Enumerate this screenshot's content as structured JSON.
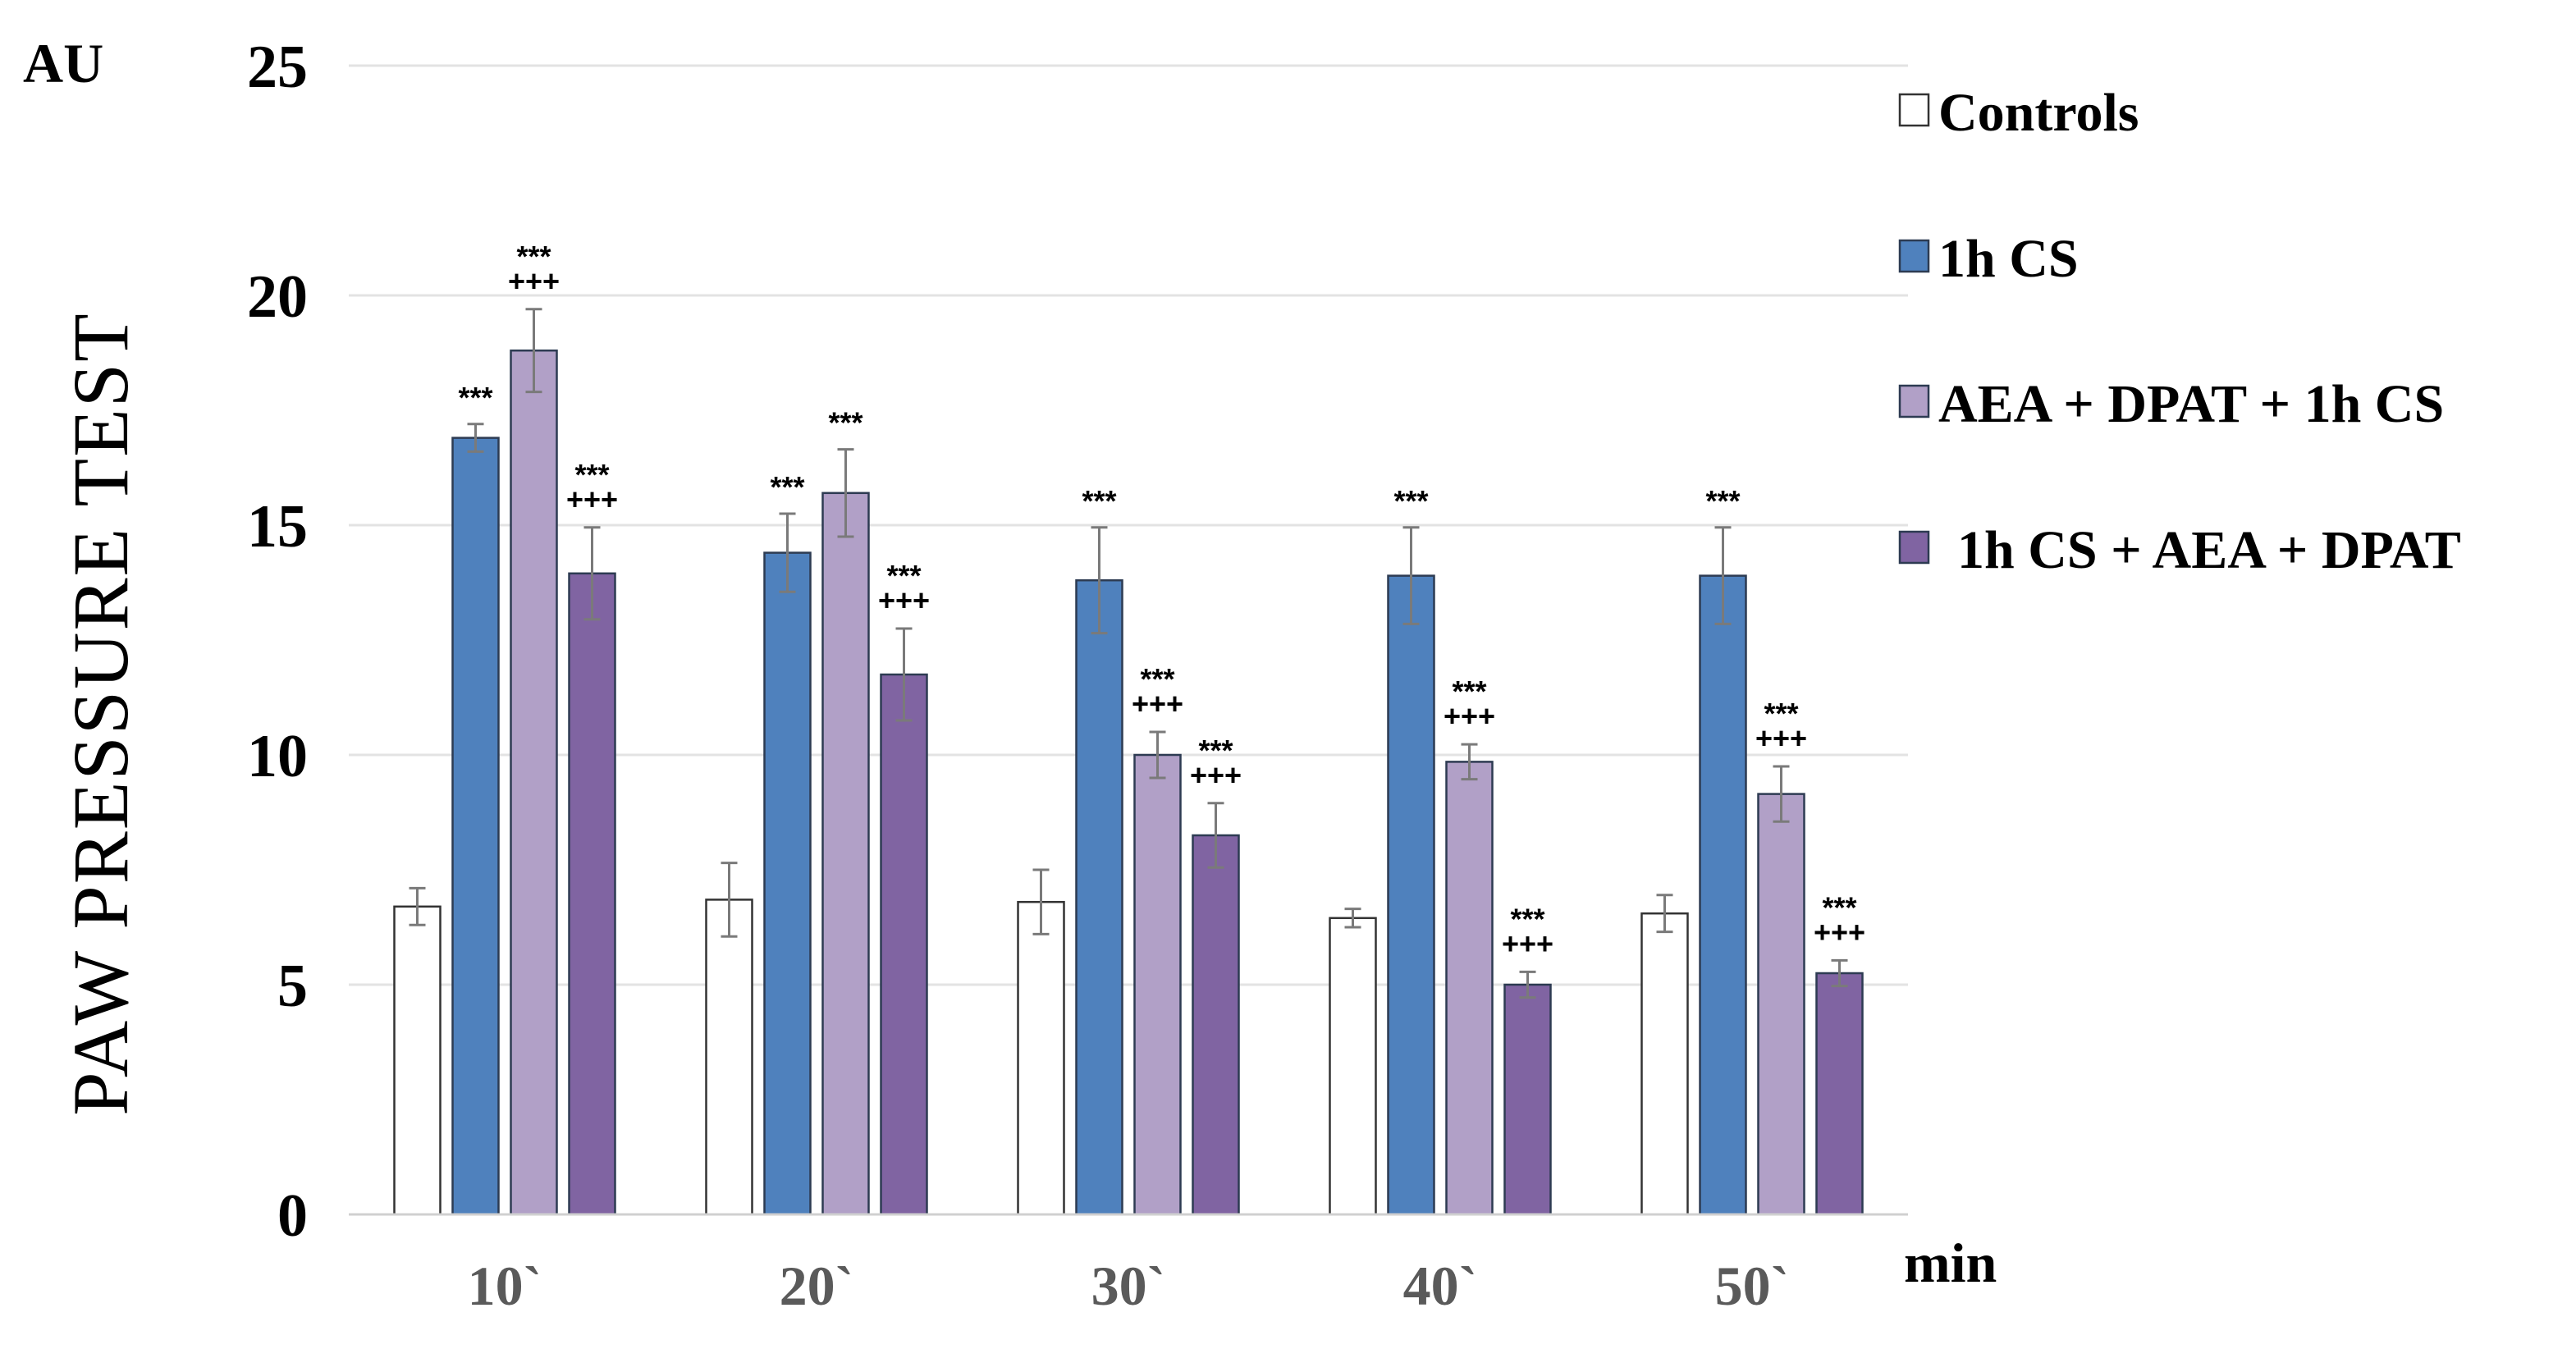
{
  "chart_data": {
    "type": "bar",
    "title": "",
    "ylabel": "PAW PRESSURE TEST",
    "yunit": "AU",
    "xlabel": "min",
    "ylim": [
      0,
      25
    ],
    "yticks": [
      0,
      5,
      10,
      15,
      20,
      25
    ],
    "ytick_labels": [
      "0",
      "5",
      "10",
      "15",
      "20",
      "25"
    ],
    "grid": true,
    "legend_position": "right",
    "categories": [
      "10`",
      "20`",
      "30`",
      "40`",
      "50`"
    ],
    "series": [
      {
        "name": "Controls",
        "color": "#ffffff",
        "values": [
          6.7,
          6.85,
          6.8,
          6.45,
          6.55
        ],
        "errors": [
          0.4,
          0.8,
          0.7,
          0.2,
          0.4
        ],
        "sig_top": [
          "",
          "",
          "",
          "",
          ""
        ],
        "sig_bottom": [
          "",
          "",
          "",
          "",
          ""
        ]
      },
      {
        "name": "1h CS",
        "color": "#4f81bd",
        "values": [
          16.9,
          14.4,
          13.8,
          13.9,
          13.9
        ],
        "errors": [
          0.3,
          0.85,
          1.15,
          1.05,
          1.05
        ],
        "sig_top": [
          "***",
          "***",
          "***",
          "***",
          "***"
        ],
        "sig_bottom": [
          "",
          "",
          "",
          "",
          ""
        ]
      },
      {
        "name": "AEA + DPAT + 1h CS",
        "color": "#b1a0c7",
        "values": [
          18.8,
          15.7,
          10.0,
          9.85,
          9.15
        ],
        "errors": [
          0.9,
          0.95,
          0.5,
          0.38,
          0.6
        ],
        "sig_top": [
          "***",
          "***",
          "***",
          "***",
          "***"
        ],
        "sig_bottom": [
          "+++",
          "",
          "+++",
          "+++",
          "+++"
        ]
      },
      {
        "name": "1h CS + AEA + DPAT",
        "color": "#8064a2",
        "values": [
          13.95,
          11.75,
          8.25,
          5.0,
          5.25
        ],
        "errors": [
          1.0,
          1.0,
          0.7,
          0.28,
          0.28
        ],
        "sig_top": [
          "***",
          "***",
          "***",
          "***",
          "***"
        ],
        "sig_bottom": [
          "+++",
          "+++",
          "+++",
          "+++",
          "+++"
        ]
      }
    ]
  }
}
